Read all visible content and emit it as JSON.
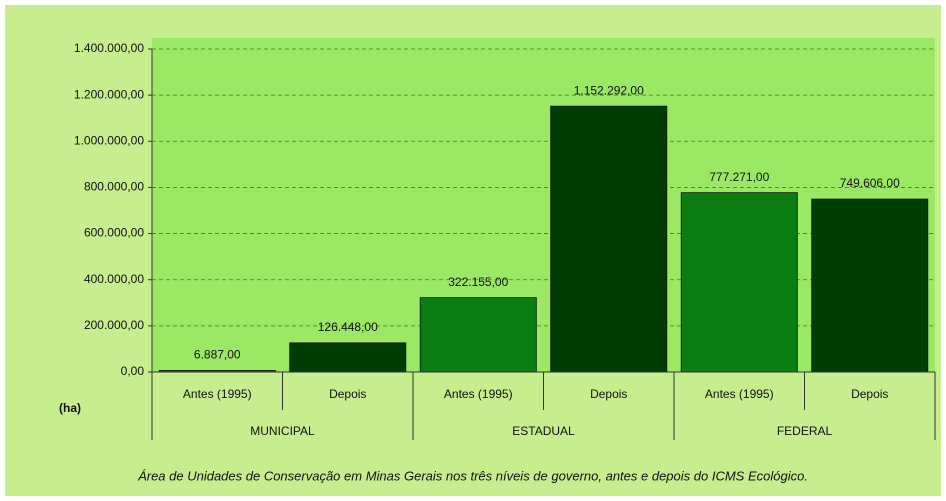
{
  "chart_data": {
    "type": "bar",
    "y_label": "(ha)",
    "caption": "Área de Unidades de Conservação em Minas Gerais nos três níveis de governo, antes e depois do ICMS Ecológico.",
    "categories": [
      "Antes (1995)",
      "Depois",
      "Antes (1995)",
      "Depois",
      "Antes (1995)",
      "Depois"
    ],
    "groups": [
      "MUNICIPAL",
      "ESTADUAL",
      "FEDERAL"
    ],
    "values": [
      6887,
      126448,
      322155,
      1152292,
      777271,
      749606
    ],
    "value_labels": [
      "6.887,00",
      "126.448,00",
      "322.155,00",
      "1.152.292,00",
      "777.271,00",
      "749.606,00"
    ],
    "colors": [
      "#0b7d12",
      "#013d05",
      "#0b7d12",
      "#013d05",
      "#0b7d12",
      "#013d05"
    ],
    "ylim": [
      0,
      1400000
    ],
    "yticks": [
      {
        "value": 0,
        "label": "0,00"
      },
      {
        "value": 200000,
        "label": "200.000,00"
      },
      {
        "value": 400000,
        "label": "400.000,00"
      },
      {
        "value": 600000,
        "label": "600.000,00"
      },
      {
        "value": 800000,
        "label": "800.000,00"
      },
      {
        "value": 1000000,
        "label": "1.000.000,00"
      },
      {
        "value": 1200000,
        "label": "1.200.000,00"
      },
      {
        "value": 1400000,
        "label": "1.400.000,00"
      }
    ],
    "grid": true
  }
}
